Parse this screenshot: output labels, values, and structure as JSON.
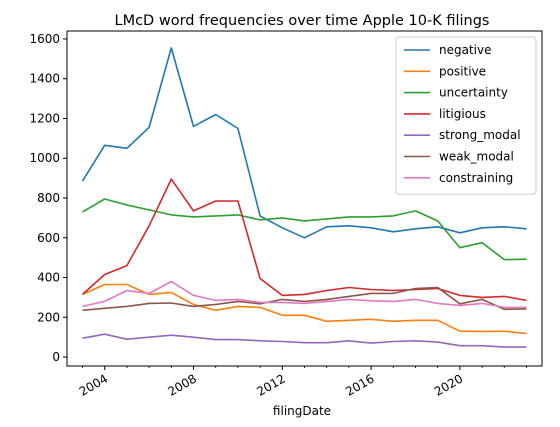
{
  "chart_data": {
    "type": "line",
    "title": "LMcD word frequencies over time Apple 10-K filings",
    "xlabel": "filingDate",
    "ylabel": "",
    "x": [
      2003,
      2004,
      2005,
      2006,
      2007,
      2008,
      2009,
      2010,
      2011,
      2012,
      2013,
      2014,
      2015,
      2016,
      2017,
      2018,
      2019,
      2020,
      2021,
      2022,
      2023
    ],
    "xticks": [
      2004,
      2008,
      2012,
      2016,
      2020
    ],
    "xtick_labels": [
      "2004",
      "2008",
      "2012",
      "2016",
      "2020"
    ],
    "xlim": [
      2002.3,
      2023.7
    ],
    "ylim": [
      -45,
      1640
    ],
    "yticks": [
      0,
      200,
      400,
      600,
      800,
      1000,
      1200,
      1400,
      1600
    ],
    "ytick_labels": [
      "0",
      "200",
      "400",
      "600",
      "800",
      "1000",
      "1200",
      "1400",
      "1600"
    ],
    "grid": false,
    "legend_position": "top-right",
    "series": [
      {
        "name": "negative",
        "color": "#1f77b4",
        "values": [
          885,
          1065,
          1050,
          1155,
          1555,
          1160,
          1220,
          1150,
          710,
          650,
          600,
          655,
          660,
          650,
          630,
          645,
          655,
          625,
          650,
          655,
          645
        ]
      },
      {
        "name": "positive",
        "color": "#ff7f0e",
        "values": [
          315,
          365,
          365,
          315,
          325,
          265,
          235,
          255,
          250,
          210,
          210,
          180,
          185,
          190,
          180,
          185,
          185,
          130,
          128,
          130,
          118
        ]
      },
      {
        "name": "uncertainty",
        "color": "#2ca02c",
        "values": [
          730,
          795,
          765,
          740,
          715,
          705,
          710,
          715,
          690,
          700,
          685,
          695,
          705,
          705,
          710,
          735,
          685,
          550,
          575,
          490,
          492
        ]
      },
      {
        "name": "litigious",
        "color": "#d62728",
        "values": [
          315,
          415,
          460,
          660,
          895,
          735,
          785,
          785,
          395,
          310,
          315,
          335,
          350,
          340,
          335,
          340,
          345,
          310,
          300,
          305,
          285
        ]
      },
      {
        "name": "strong_modal",
        "color": "#9467bd",
        "values": [
          95,
          115,
          90,
          100,
          110,
          100,
          88,
          88,
          82,
          78,
          72,
          72,
          82,
          70,
          78,
          82,
          75,
          57,
          57,
          50,
          50
        ]
      },
      {
        "name": "weak_modal",
        "color": "#8c564b",
        "values": [
          235,
          245,
          255,
          270,
          272,
          255,
          265,
          280,
          268,
          290,
          280,
          290,
          305,
          320,
          320,
          345,
          350,
          268,
          290,
          240,
          242
        ]
      },
      {
        "name": "constraining",
        "color": "#e377c2",
        "values": [
          255,
          280,
          335,
          320,
          380,
          310,
          285,
          290,
          275,
          275,
          270,
          280,
          290,
          283,
          280,
          290,
          270,
          260,
          270,
          250,
          250
        ]
      }
    ]
  }
}
